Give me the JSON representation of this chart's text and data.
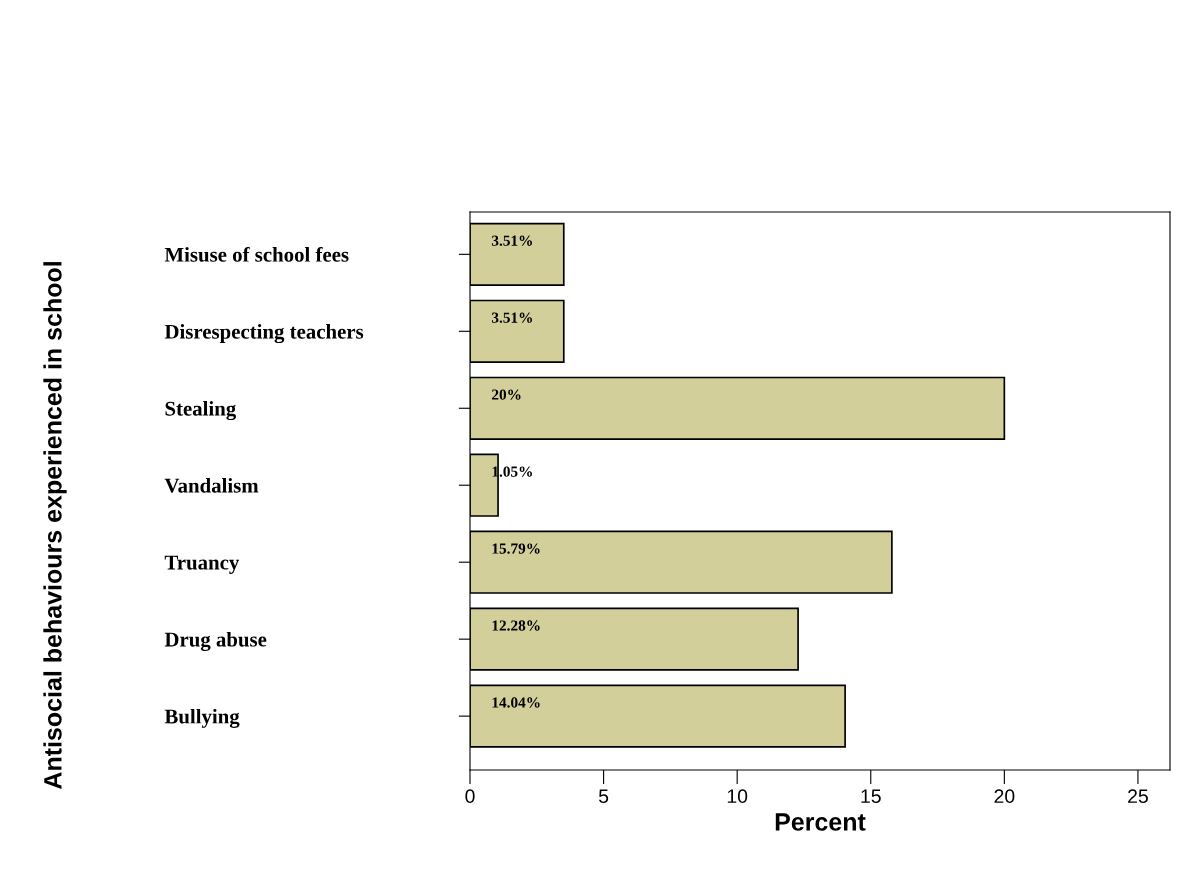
{
  "chart_data": {
    "type": "bar",
    "orientation": "horizontal",
    "xlabel": "Percent",
    "ylabel": "Antisocial behaviours experienced in school",
    "categories": [
      "Misuse of school fees",
      "Disrespecting teachers",
      "Stealing",
      "Vandalism",
      "Truancy",
      "Drug abuse",
      "Bullying"
    ],
    "values": [
      3.51,
      3.51,
      20,
      1.05,
      15.79,
      12.28,
      14.04
    ],
    "value_labels": [
      "3.51%",
      "3.51%",
      "20%",
      "1.05%",
      "15.79%",
      "12.28%",
      "14.04%"
    ],
    "color": "#d3cf9a",
    "xlim": [
      0,
      26.2
    ],
    "xticks": [
      0,
      5,
      10,
      15,
      20,
      25
    ],
    "grid": false,
    "legend": false
  }
}
